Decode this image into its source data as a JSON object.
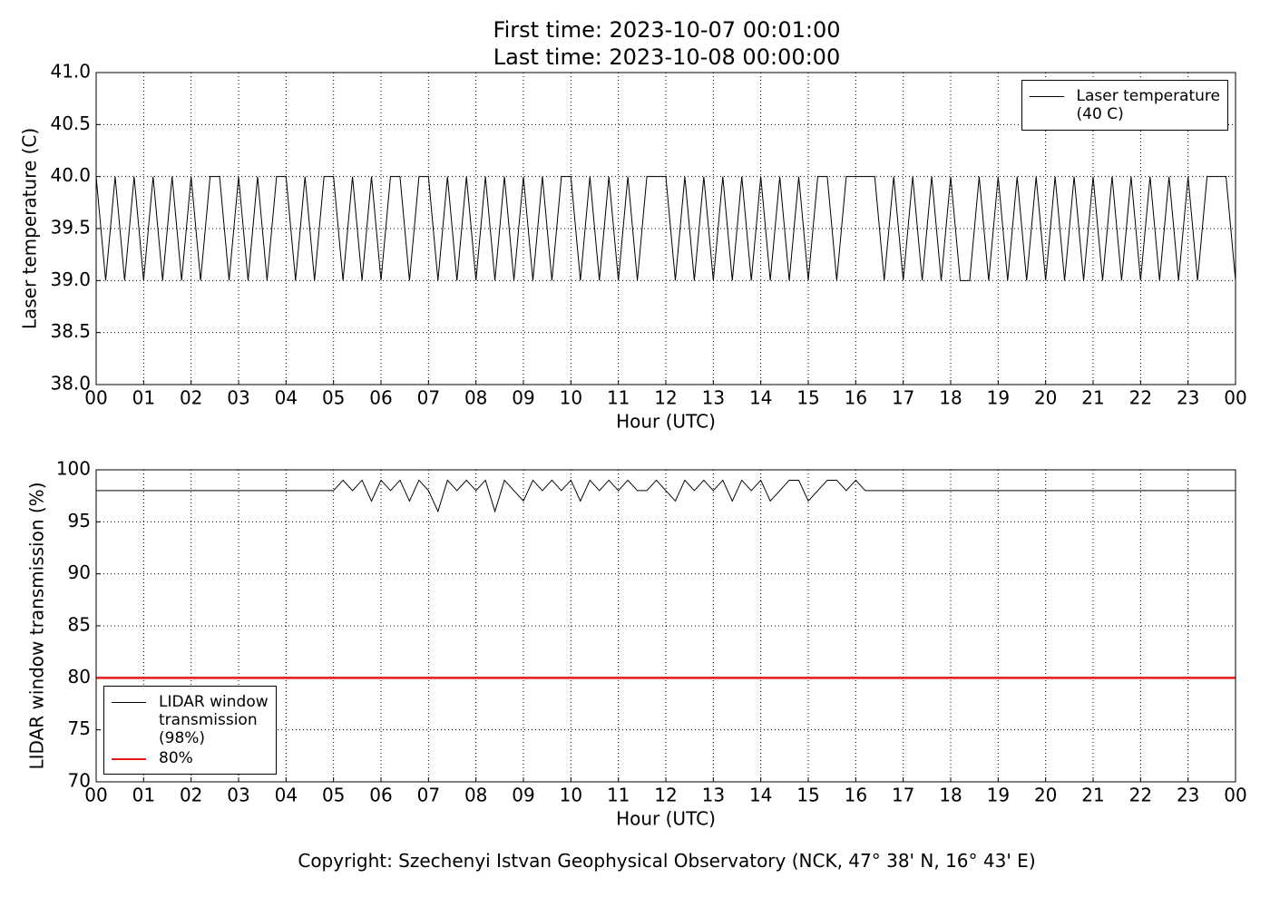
{
  "title": "First time: 2023-10-07 00:01:00\nLast time: 2023-10-08 00:00:00",
  "footer": "Copyright: Szechenyi Istvan Geophysical Observatory (NCK, 47° 38' N, 16° 43' E)",
  "chart_data": [
    {
      "type": "line",
      "xlabel": "Hour (UTC)",
      "ylabel": "Laser temperature (C)",
      "xlim": [
        0,
        24
      ],
      "ylim": [
        38,
        41
      ],
      "grid": true,
      "legend": "upper right",
      "xticks": [
        {
          "value": 0,
          "label": "00"
        },
        {
          "value": 1,
          "label": "01"
        },
        {
          "value": 2,
          "label": "02"
        },
        {
          "value": 3,
          "label": "03"
        },
        {
          "value": 4,
          "label": "04"
        },
        {
          "value": 5,
          "label": "05"
        },
        {
          "value": 6,
          "label": "06"
        },
        {
          "value": 7,
          "label": "07"
        },
        {
          "value": 8,
          "label": "08"
        },
        {
          "value": 9,
          "label": "09"
        },
        {
          "value": 10,
          "label": "10"
        },
        {
          "value": 11,
          "label": "11"
        },
        {
          "value": 12,
          "label": "12"
        },
        {
          "value": 13,
          "label": "13"
        },
        {
          "value": 14,
          "label": "14"
        },
        {
          "value": 15,
          "label": "15"
        },
        {
          "value": 16,
          "label": "16"
        },
        {
          "value": 17,
          "label": "17"
        },
        {
          "value": 18,
          "label": "18"
        },
        {
          "value": 19,
          "label": "19"
        },
        {
          "value": 20,
          "label": "20"
        },
        {
          "value": 21,
          "label": "21"
        },
        {
          "value": 22,
          "label": "22"
        },
        {
          "value": 23,
          "label": "23"
        },
        {
          "value": 24,
          "label": "00"
        }
      ],
      "yticks": [
        {
          "value": 38,
          "label": "38.0"
        },
        38.5,
        {
          "value": 39,
          "label": "39.0"
        },
        39.5,
        {
          "value": 40,
          "label": "40.0"
        },
        40.5,
        {
          "value": 41,
          "label": "41.0"
        }
      ],
      "x": [
        0,
        0.2,
        0.4,
        0.6,
        0.8,
        1,
        1.2,
        1.4,
        1.6,
        1.8,
        2,
        2.2,
        2.4,
        2.6,
        2.8,
        3,
        3.2,
        3.4,
        3.6,
        3.8,
        4,
        4.2,
        4.4,
        4.6,
        4.8,
        5,
        5.2,
        5.4,
        5.6,
        5.8,
        6,
        6.2,
        6.4,
        6.6,
        6.8,
        7,
        7.2,
        7.4,
        7.6,
        7.8,
        8,
        8.2,
        8.4,
        8.6,
        8.8,
        9,
        9.2,
        9.4,
        9.6,
        9.8,
        10,
        10.2,
        10.4,
        10.6,
        10.8,
        11,
        11.2,
        11.4,
        11.6,
        11.8,
        12,
        12.2,
        12.4,
        12.6,
        12.8,
        13,
        13.2,
        13.4,
        13.6,
        13.8,
        14,
        14.2,
        14.4,
        14.6,
        14.8,
        15,
        15.2,
        15.4,
        15.6,
        15.8,
        16,
        16.2,
        16.4,
        16.6,
        16.8,
        17,
        17.2,
        17.4,
        17.6,
        17.8,
        18,
        18.2,
        18.4,
        18.6,
        18.8,
        19,
        19.2,
        19.4,
        19.6,
        19.8,
        20,
        20.2,
        20.4,
        20.6,
        20.8,
        21,
        21.2,
        21.4,
        21.6,
        21.8,
        22,
        22.2,
        22.4,
        22.6,
        22.8,
        23,
        23.2,
        23.4,
        23.6,
        23.8,
        24
      ],
      "series": [
        {
          "name": "Laser temperature\n(40 C)",
          "color": "#000000",
          "width": 1,
          "values": [
            40,
            39,
            40,
            39,
            40,
            39,
            40,
            39,
            40,
            39,
            40,
            39,
            40,
            40,
            39,
            40,
            39,
            40,
            39,
            40,
            40,
            39,
            40,
            39,
            40,
            40,
            39,
            40,
            39,
            40,
            39,
            40,
            40,
            39,
            40,
            40,
            39,
            40,
            39,
            40,
            39,
            40,
            39,
            40,
            39,
            40,
            39,
            40,
            39,
            40,
            40,
            39,
            40,
            39,
            40,
            39,
            40,
            39,
            40,
            40,
            40,
            39,
            40,
            39,
            40,
            39,
            40,
            39,
            40,
            39,
            40,
            39,
            40,
            39,
            40,
            39,
            40,
            40,
            39,
            40,
            40,
            40,
            40,
            39,
            40,
            39,
            40,
            39,
            40,
            39,
            40,
            39,
            39,
            40,
            39,
            40,
            39,
            40,
            39,
            40,
            39,
            40,
            39,
            40,
            39,
            40,
            39,
            40,
            39,
            40,
            39,
            40,
            39,
            40,
            39,
            40,
            39,
            40,
            40,
            40,
            39
          ]
        }
      ]
    },
    {
      "type": "line",
      "xlabel": "Hour (UTC)",
      "ylabel": "LIDAR window transmission (%)",
      "xlim": [
        0,
        24
      ],
      "ylim": [
        70,
        100
      ],
      "grid": true,
      "legend": "lower left",
      "xticks": [
        {
          "value": 0,
          "label": "00"
        },
        {
          "value": 1,
          "label": "01"
        },
        {
          "value": 2,
          "label": "02"
        },
        {
          "value": 3,
          "label": "03"
        },
        {
          "value": 4,
          "label": "04"
        },
        {
          "value": 5,
          "label": "05"
        },
        {
          "value": 6,
          "label": "06"
        },
        {
          "value": 7,
          "label": "07"
        },
        {
          "value": 8,
          "label": "08"
        },
        {
          "value": 9,
          "label": "09"
        },
        {
          "value": 10,
          "label": "10"
        },
        {
          "value": 11,
          "label": "11"
        },
        {
          "value": 12,
          "label": "12"
        },
        {
          "value": 13,
          "label": "13"
        },
        {
          "value": 14,
          "label": "14"
        },
        {
          "value": 15,
          "label": "15"
        },
        {
          "value": 16,
          "label": "16"
        },
        {
          "value": 17,
          "label": "17"
        },
        {
          "value": 18,
          "label": "18"
        },
        {
          "value": 19,
          "label": "19"
        },
        {
          "value": 20,
          "label": "20"
        },
        {
          "value": 21,
          "label": "21"
        },
        {
          "value": 22,
          "label": "22"
        },
        {
          "value": 23,
          "label": "23"
        },
        {
          "value": 24,
          "label": "00"
        }
      ],
      "yticks": [
        70,
        75,
        80,
        85,
        90,
        95,
        100
      ],
      "x": [
        0,
        0.2,
        0.4,
        0.6,
        0.8,
        1,
        1.2,
        1.4,
        1.6,
        1.8,
        2,
        2.2,
        2.4,
        2.6,
        2.8,
        3,
        3.2,
        3.4,
        3.6,
        3.8,
        4,
        4.2,
        4.4,
        4.6,
        4.8,
        5,
        5.2,
        5.4,
        5.6,
        5.8,
        6,
        6.2,
        6.4,
        6.6,
        6.8,
        7,
        7.2,
        7.4,
        7.6,
        7.8,
        8,
        8.2,
        8.4,
        8.6,
        8.8,
        9,
        9.2,
        9.4,
        9.6,
        9.8,
        10,
        10.2,
        10.4,
        10.6,
        10.8,
        11,
        11.2,
        11.4,
        11.6,
        11.8,
        12,
        12.2,
        12.4,
        12.6,
        12.8,
        13,
        13.2,
        13.4,
        13.6,
        13.8,
        14,
        14.2,
        14.4,
        14.6,
        14.8,
        15,
        15.2,
        15.4,
        15.6,
        15.8,
        16,
        16.2,
        16.4,
        16.6,
        16.8,
        17,
        17.2,
        17.4,
        17.6,
        17.8,
        18,
        18.2,
        18.4,
        18.6,
        18.8,
        19,
        19.2,
        19.4,
        19.6,
        19.8,
        20,
        20.2,
        20.4,
        20.6,
        20.8,
        21,
        21.2,
        21.4,
        21.6,
        21.8,
        22,
        22.2,
        22.4,
        22.6,
        22.8,
        23,
        23.2,
        23.4,
        23.6,
        23.8,
        24
      ],
      "series": [
        {
          "name": "LIDAR window\ntransmission\n(98%)",
          "color": "#000000",
          "width": 1,
          "values": [
            98,
            98,
            98,
            98,
            98,
            98,
            98,
            98,
            98,
            98,
            98,
            98,
            98,
            98,
            98,
            98,
            98,
            98,
            98,
            98,
            98,
            98,
            98,
            98,
            98,
            98,
            99,
            98,
            99,
            97,
            99,
            98,
            99,
            97,
            99,
            98,
            96,
            99,
            98,
            99,
            98,
            99,
            96,
            99,
            98,
            97,
            99,
            98,
            99,
            98,
            99,
            97,
            99,
            98,
            99,
            98,
            99,
            98,
            98,
            99,
            98,
            97,
            99,
            98,
            99,
            98,
            99,
            97,
            99,
            98,
            99,
            97,
            98,
            99,
            99,
            97,
            98,
            99,
            99,
            98,
            99,
            98,
            98,
            98,
            98,
            98,
            98,
            98,
            98,
            98,
            98,
            98,
            98,
            98,
            98,
            98,
            98,
            98,
            98,
            98,
            98,
            98,
            98,
            98,
            98,
            98,
            98,
            98,
            98,
            98,
            98,
            98,
            98,
            98,
            98,
            98,
            98,
            98,
            98,
            98,
            98
          ]
        },
        {
          "name": "80%",
          "color": "#e41a1c",
          "width": 2.5,
          "x": [
            0,
            24
          ],
          "values": [
            80,
            80
          ]
        }
      ]
    }
  ]
}
